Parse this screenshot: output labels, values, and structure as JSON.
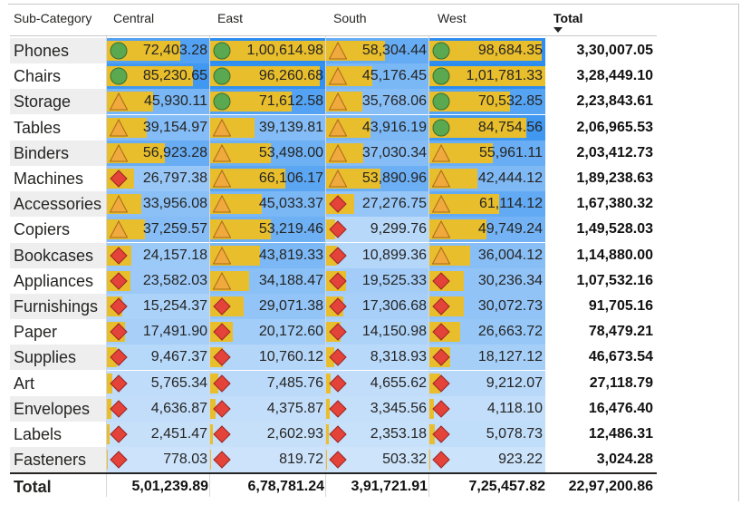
{
  "header": {
    "row_header": "Sub-Category",
    "columns": [
      "Central",
      "East",
      "South",
      "West"
    ],
    "total": "Total"
  },
  "colors": {
    "bar": "#e8be2c",
    "icon_good": "#5aa84f",
    "icon_mid": "#f0a93c",
    "icon_bad": "#e4433a",
    "scale_low": "#cfe5fb",
    "scale_high": "#2b8cf0"
  },
  "icon_names": {
    "good": "green-circle-icon",
    "mid": "orange-triangle-icon",
    "bad": "red-diamond-icon"
  },
  "rows": [
    {
      "label": "Phones",
      "total": "3,30,007.05",
      "cells": [
        {
          "display": "72,403.28",
          "value": 72403.28,
          "icon": "good"
        },
        {
          "display": "1,00,614.98",
          "value": 100614.98,
          "icon": "good"
        },
        {
          "display": "58,304.44",
          "value": 58304.44,
          "icon": "mid"
        },
        {
          "display": "98,684.35",
          "value": 98684.35,
          "icon": "good"
        }
      ]
    },
    {
      "label": "Chairs",
      "total": "3,28,449.10",
      "cells": [
        {
          "display": "85,230.65",
          "value": 85230.65,
          "icon": "good"
        },
        {
          "display": "96,260.68",
          "value": 96260.68,
          "icon": "good"
        },
        {
          "display": "45,176.45",
          "value": 45176.45,
          "icon": "mid"
        },
        {
          "display": "1,01,781.33",
          "value": 101781.33,
          "icon": "good"
        }
      ]
    },
    {
      "label": "Storage",
      "total": "2,23,843.61",
      "cells": [
        {
          "display": "45,930.11",
          "value": 45930.11,
          "icon": "mid"
        },
        {
          "display": "71,612.58",
          "value": 71612.58,
          "icon": "good"
        },
        {
          "display": "35,768.06",
          "value": 35768.06,
          "icon": "mid"
        },
        {
          "display": "70,532.85",
          "value": 70532.85,
          "icon": "good"
        }
      ]
    },
    {
      "label": "Tables",
      "total": "2,06,965.53",
      "cells": [
        {
          "display": "39,154.97",
          "value": 39154.97,
          "icon": "mid"
        },
        {
          "display": "39,139.81",
          "value": 39139.81,
          "icon": "mid"
        },
        {
          "display": "43,916.19",
          "value": 43916.19,
          "icon": "mid"
        },
        {
          "display": "84,754.56",
          "value": 84754.56,
          "icon": "good"
        }
      ]
    },
    {
      "label": "Binders",
      "total": "2,03,412.73",
      "cells": [
        {
          "display": "56,923.28",
          "value": 56923.28,
          "icon": "mid"
        },
        {
          "display": "53,498.00",
          "value": 53498.0,
          "icon": "mid"
        },
        {
          "display": "37,030.34",
          "value": 37030.34,
          "icon": "mid"
        },
        {
          "display": "55,961.11",
          "value": 55961.11,
          "icon": "mid"
        }
      ]
    },
    {
      "label": "Machines",
      "total": "1,89,238.63",
      "cells": [
        {
          "display": "26,797.38",
          "value": 26797.38,
          "icon": "bad"
        },
        {
          "display": "66,106.17",
          "value": 66106.17,
          "icon": "mid"
        },
        {
          "display": "53,890.96",
          "value": 53890.96,
          "icon": "mid"
        },
        {
          "display": "42,444.12",
          "value": 42444.12,
          "icon": "mid"
        }
      ]
    },
    {
      "label": "Accessories",
      "total": "1,67,380.32",
      "cells": [
        {
          "display": "33,956.08",
          "value": 33956.08,
          "icon": "mid"
        },
        {
          "display": "45,033.37",
          "value": 45033.37,
          "icon": "mid"
        },
        {
          "display": "27,276.75",
          "value": 27276.75,
          "icon": "bad"
        },
        {
          "display": "61,114.12",
          "value": 61114.12,
          "icon": "mid"
        }
      ]
    },
    {
      "label": "Copiers",
      "total": "1,49,528.03",
      "cells": [
        {
          "display": "37,259.57",
          "value": 37259.57,
          "icon": "mid"
        },
        {
          "display": "53,219.46",
          "value": 53219.46,
          "icon": "mid"
        },
        {
          "display": "9,299.76",
          "value": 9299.76,
          "icon": "bad"
        },
        {
          "display": "49,749.24",
          "value": 49749.24,
          "icon": "mid"
        }
      ]
    },
    {
      "label": "Bookcases",
      "total": "1,14,880.00",
      "cells": [
        {
          "display": "24,157.18",
          "value": 24157.18,
          "icon": "bad"
        },
        {
          "display": "43,819.33",
          "value": 43819.33,
          "icon": "mid"
        },
        {
          "display": "10,899.36",
          "value": 10899.36,
          "icon": "bad"
        },
        {
          "display": "36,004.12",
          "value": 36004.12,
          "icon": "mid"
        }
      ]
    },
    {
      "label": "Appliances",
      "total": "1,07,532.16",
      "cells": [
        {
          "display": "23,582.03",
          "value": 23582.03,
          "icon": "bad"
        },
        {
          "display": "34,188.47",
          "value": 34188.47,
          "icon": "mid"
        },
        {
          "display": "19,525.33",
          "value": 19525.33,
          "icon": "bad"
        },
        {
          "display": "30,236.34",
          "value": 30236.34,
          "icon": "bad"
        }
      ]
    },
    {
      "label": "Furnishings",
      "total": "91,705.16",
      "cells": [
        {
          "display": "15,254.37",
          "value": 15254.37,
          "icon": "bad"
        },
        {
          "display": "29,071.38",
          "value": 29071.38,
          "icon": "bad"
        },
        {
          "display": "17,306.68",
          "value": 17306.68,
          "icon": "bad"
        },
        {
          "display": "30,072.73",
          "value": 30072.73,
          "icon": "bad"
        }
      ]
    },
    {
      "label": "Paper",
      "total": "78,479.21",
      "cells": [
        {
          "display": "17,491.90",
          "value": 17491.9,
          "icon": "bad"
        },
        {
          "display": "20,172.60",
          "value": 20172.6,
          "icon": "bad"
        },
        {
          "display": "14,150.98",
          "value": 14150.98,
          "icon": "bad"
        },
        {
          "display": "26,663.72",
          "value": 26663.72,
          "icon": "bad"
        }
      ]
    },
    {
      "label": "Supplies",
      "total": "46,673.54",
      "cells": [
        {
          "display": "9,467.37",
          "value": 9467.37,
          "icon": "bad"
        },
        {
          "display": "10,760.12",
          "value": 10760.12,
          "icon": "bad"
        },
        {
          "display": "8,318.93",
          "value": 8318.93,
          "icon": "bad"
        },
        {
          "display": "18,127.12",
          "value": 18127.12,
          "icon": "bad"
        }
      ]
    },
    {
      "label": "Art",
      "total": "27,118.79",
      "cells": [
        {
          "display": "5,765.34",
          "value": 5765.34,
          "icon": "bad"
        },
        {
          "display": "7,485.76",
          "value": 7485.76,
          "icon": "bad"
        },
        {
          "display": "4,655.62",
          "value": 4655.62,
          "icon": "bad"
        },
        {
          "display": "9,212.07",
          "value": 9212.07,
          "icon": "bad"
        }
      ]
    },
    {
      "label": "Envelopes",
      "total": "16,476.40",
      "cells": [
        {
          "display": "4,636.87",
          "value": 4636.87,
          "icon": "bad"
        },
        {
          "display": "4,375.87",
          "value": 4375.87,
          "icon": "bad"
        },
        {
          "display": "3,345.56",
          "value": 3345.56,
          "icon": "bad"
        },
        {
          "display": "4,118.10",
          "value": 4118.1,
          "icon": "bad"
        }
      ]
    },
    {
      "label": "Labels",
      "total": "12,486.31",
      "cells": [
        {
          "display": "2,451.47",
          "value": 2451.47,
          "icon": "bad"
        },
        {
          "display": "2,602.93",
          "value": 2602.93,
          "icon": "bad"
        },
        {
          "display": "2,353.18",
          "value": 2353.18,
          "icon": "bad"
        },
        {
          "display": "5,078.73",
          "value": 5078.73,
          "icon": "bad"
        }
      ]
    },
    {
      "label": "Fasteners",
      "total": "3,024.28",
      "cells": [
        {
          "display": "778.03",
          "value": 778.03,
          "icon": "bad"
        },
        {
          "display": "819.72",
          "value": 819.72,
          "icon": "bad"
        },
        {
          "display": "503.32",
          "value": 503.32,
          "icon": "bad"
        },
        {
          "display": "923.22",
          "value": 923.22,
          "icon": "bad"
        }
      ]
    }
  ],
  "totals": {
    "label": "Total",
    "columns": [
      "5,01,239.89",
      "6,78,781.24",
      "3,91,721.91",
      "7,25,457.82"
    ],
    "grand": "22,97,200.86"
  }
}
